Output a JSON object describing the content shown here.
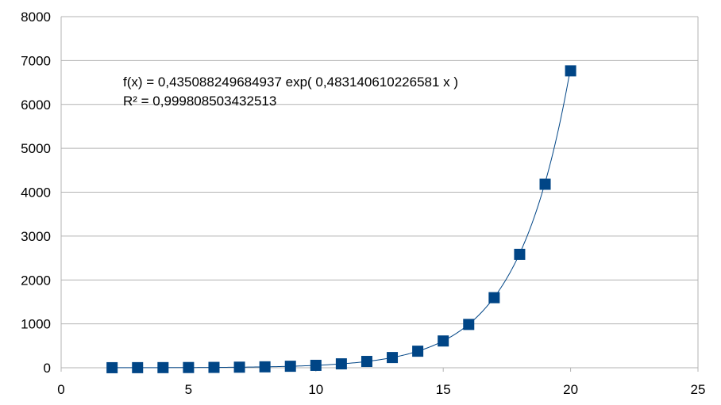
{
  "chart_data": {
    "type": "scatter",
    "title": "",
    "xlabel": "",
    "ylabel": "",
    "xlim": [
      0,
      25
    ],
    "ylim": [
      0,
      8000
    ],
    "x_ticks": [
      0,
      5,
      10,
      15,
      20,
      25
    ],
    "y_ticks": [
      0,
      1000,
      2000,
      3000,
      4000,
      5000,
      6000,
      7000,
      8000
    ],
    "grid": "horizontal",
    "legend": "none",
    "series": [
      {
        "marker": "square",
        "color": "#004586",
        "points": [
          {
            "x": 2,
            "y": 1
          },
          {
            "x": 3,
            "y": 2
          },
          {
            "x": 4,
            "y": 3
          },
          {
            "x": 5,
            "y": 5
          },
          {
            "x": 6,
            "y": 8
          },
          {
            "x": 7,
            "y": 13
          },
          {
            "x": 8,
            "y": 21
          },
          {
            "x": 9,
            "y": 34
          },
          {
            "x": 10,
            "y": 55
          },
          {
            "x": 11,
            "y": 89
          },
          {
            "x": 12,
            "y": 144
          },
          {
            "x": 13,
            "y": 233
          },
          {
            "x": 14,
            "y": 377
          },
          {
            "x": 15,
            "y": 610
          },
          {
            "x": 16,
            "y": 987
          },
          {
            "x": 17,
            "y": 1597
          },
          {
            "x": 18,
            "y": 2584
          },
          {
            "x": 19,
            "y": 4181
          },
          {
            "x": 20,
            "y": 6765
          }
        ]
      }
    ],
    "trendline": {
      "type": "exponential",
      "a": 0.435088249684937,
      "b": 0.483140610226581,
      "color": "#004586",
      "equation_text": "f(x) = 0,435088249684937 exp( 0,483140610226581 x )",
      "r2_text": "R² = 0,999808503432513"
    }
  }
}
